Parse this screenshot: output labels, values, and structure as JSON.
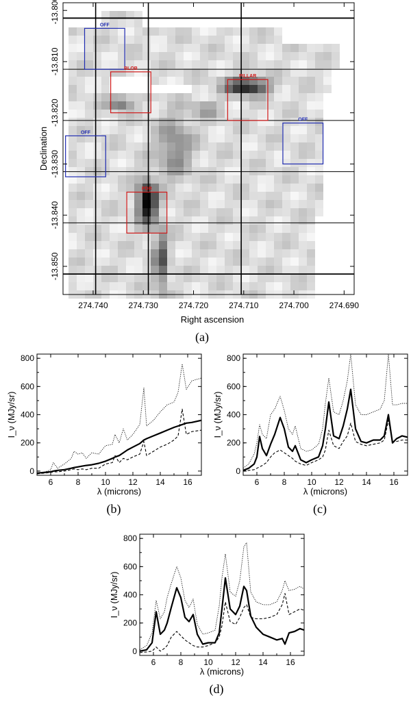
{
  "chart_data": [
    {
      "type": "heatmap",
      "panel": "(a)",
      "xlabel": "Right ascension",
      "ylabel": "Declination",
      "xlim": [
        274.746,
        274.688
      ],
      "ylim": [
        -13.8555,
        -13.7985
      ],
      "xticks": [
        "274.740",
        "274.730",
        "274.720",
        "274.710",
        "274.700",
        "274.690"
      ],
      "xtick_values": [
        274.74,
        274.73,
        274.72,
        274.71,
        274.7,
        274.69
      ],
      "yticks": [
        "-13.800",
        "-13.810",
        "-13.820",
        "-13.830",
        "-13.840",
        "-13.850"
      ],
      "ytick_values": [
        -13.8,
        -13.81,
        -13.82,
        -13.83,
        -13.84,
        -13.85
      ],
      "grid_ra": [
        274.7395,
        274.729,
        274.7105
      ],
      "grid_dec": [
        -13.8015,
        -13.8115,
        -13.8215,
        -13.8315,
        -13.8415,
        -13.8515
      ],
      "regions": [
        {
          "name": "OFF",
          "color": "#1f2bb0",
          "ra": [
            274.7417,
            274.7337
          ],
          "dec": [
            -13.8035,
            -13.8115
          ]
        },
        {
          "name": "BLOB",
          "color": "#d01818",
          "ra": [
            274.7365,
            274.7285
          ],
          "dec": [
            -13.812,
            -13.82
          ]
        },
        {
          "name": "PILLAR",
          "color": "#d01818",
          "ra": [
            274.7132,
            274.7052
          ],
          "dec": [
            -13.8135,
            -13.8215
          ]
        },
        {
          "name": "OFF",
          "color": "#1f2bb0",
          "ra": [
            274.7455,
            274.7375
          ],
          "dec": [
            -13.8245,
            -13.8325
          ]
        },
        {
          "name": "OFF",
          "color": "#1f2bb0",
          "ra": [
            274.7022,
            274.6942
          ],
          "dec": [
            -13.822,
            -13.83
          ]
        },
        {
          "name": "PDR",
          "color": "#d01818",
          "ra": [
            274.7333,
            274.7253
          ],
          "dec": [
            -13.8355,
            -13.8435
          ]
        }
      ],
      "caption": "(a)"
    },
    {
      "type": "line",
      "panel": "(b)",
      "xlabel": "λ (microns)",
      "ylabel": "I_ν (MJy/sr)",
      "xlim": [
        5,
        17
      ],
      "ylim": [
        -30,
        830
      ],
      "xticks": [
        6,
        8,
        10,
        12,
        14,
        16
      ],
      "yticks": [
        0,
        200,
        400,
        600,
        800
      ],
      "x": [
        5,
        5.5,
        6,
        6.2,
        6.5,
        7,
        7.5,
        7.7,
        8,
        8.3,
        8.6,
        9,
        9.5,
        10,
        10.5,
        10.7,
        11,
        11.3,
        11.6,
        12,
        12.5,
        12.8,
        13,
        13.5,
        14,
        14.5,
        15,
        15.3,
        15.6,
        15.9,
        16.3,
        17
      ],
      "series": [
        {
          "name": "solid",
          "style": "solid",
          "values": [
            -15,
            -10,
            -5,
            0,
            5,
            10,
            20,
            25,
            30,
            35,
            40,
            45,
            55,
            70,
            90,
            100,
            110,
            130,
            150,
            170,
            195,
            220,
            230,
            250,
            270,
            290,
            310,
            320,
            330,
            340,
            345,
            360
          ]
        },
        {
          "name": "dotted",
          "style": "dotted",
          "values": [
            -15,
            -10,
            10,
            60,
            20,
            50,
            90,
            140,
            120,
            130,
            90,
            130,
            120,
            180,
            190,
            260,
            200,
            300,
            220,
            260,
            330,
            590,
            320,
            360,
            420,
            470,
            490,
            560,
            760,
            580,
            640,
            660
          ]
        },
        {
          "name": "dashed",
          "style": "dashed",
          "values": [
            -20,
            -15,
            -10,
            -5,
            -5,
            0,
            10,
            15,
            10,
            15,
            10,
            20,
            20,
            50,
            60,
            110,
            60,
            90,
            80,
            100,
            120,
            210,
            110,
            140,
            170,
            190,
            220,
            250,
            440,
            260,
            280,
            290
          ]
        }
      ],
      "caption": "(b)"
    },
    {
      "type": "line",
      "panel": "(c)",
      "xlabel": "λ (microns)",
      "ylabel": "I_ν (MJy/sr)",
      "xlim": [
        5,
        17
      ],
      "ylim": [
        -30,
        830
      ],
      "xticks": [
        6,
        8,
        10,
        12,
        14,
        16
      ],
      "yticks": [
        0,
        200,
        400,
        600,
        800
      ],
      "x": [
        5,
        5.4,
        5.8,
        6.0,
        6.2,
        6.4,
        6.7,
        7.0,
        7.3,
        7.7,
        8.0,
        8.3,
        8.6,
        8.8,
        9.2,
        9.6,
        10.0,
        10.5,
        10.8,
        11.0,
        11.25,
        11.6,
        12.0,
        12.3,
        12.6,
        12.85,
        13.2,
        13.6,
        14.0,
        14.5,
        15.0,
        15.3,
        15.6,
        15.9,
        16.2,
        16.6,
        17
      ],
      "series": [
        {
          "name": "solid",
          "style": "solid",
          "values": [
            5,
            20,
            50,
            100,
            245,
            160,
            110,
            190,
            260,
            380,
            300,
            170,
            140,
            180,
            80,
            60,
            80,
            100,
            180,
            300,
            490,
            250,
            230,
            320,
            440,
            580,
            300,
            210,
            200,
            220,
            220,
            250,
            400,
            200,
            230,
            250,
            240
          ]
        },
        {
          "name": "dotted",
          "style": "dotted",
          "values": [
            20,
            50,
            120,
            200,
            330,
            260,
            230,
            400,
            440,
            530,
            430,
            300,
            260,
            320,
            160,
            140,
            150,
            190,
            300,
            480,
            660,
            420,
            400,
            500,
            640,
            850,
            470,
            400,
            400,
            420,
            440,
            500,
            830,
            470,
            470,
            480,
            480
          ]
        },
        {
          "name": "dashed",
          "style": "dashed",
          "values": [
            0,
            5,
            10,
            20,
            30,
            40,
            60,
            100,
            130,
            150,
            130,
            110,
            90,
            70,
            50,
            40,
            60,
            80,
            100,
            150,
            290,
            180,
            160,
            210,
            250,
            340,
            210,
            190,
            180,
            190,
            200,
            220,
            360,
            210,
            210,
            220,
            220
          ]
        }
      ],
      "caption": "(c)"
    },
    {
      "type": "line",
      "panel": "(d)",
      "xlabel": "λ (microns)",
      "ylabel": "I_ν (MJy/sr)",
      "xlim": [
        5,
        17
      ],
      "ylim": [
        -30,
        830
      ],
      "xticks": [
        6,
        8,
        10,
        12,
        14,
        16
      ],
      "yticks": [
        0,
        200,
        400,
        600,
        800
      ],
      "x": [
        5,
        5.5,
        5.9,
        6.2,
        6.5,
        6.8,
        7.0,
        7.3,
        7.7,
        8.0,
        8.3,
        8.6,
        8.9,
        9.2,
        9.6,
        10.0,
        10.5,
        10.8,
        11.0,
        11.25,
        11.6,
        12.0,
        12.3,
        12.6,
        12.8,
        13.1,
        13.5,
        14.0,
        14.5,
        15.0,
        15.4,
        15.6,
        15.9,
        16.3,
        16.7,
        17
      ],
      "series": [
        {
          "name": "solid",
          "style": "solid",
          "values": [
            0,
            10,
            60,
            280,
            120,
            150,
            200,
            310,
            450,
            380,
            240,
            210,
            260,
            120,
            50,
            60,
            60,
            130,
            300,
            520,
            300,
            260,
            320,
            460,
            430,
            250,
            170,
            120,
            100,
            80,
            90,
            50,
            130,
            140,
            160,
            150
          ]
        },
        {
          "name": "dotted",
          "style": "dotted",
          "values": [
            10,
            40,
            130,
            360,
            230,
            280,
            380,
            480,
            600,
            520,
            360,
            310,
            370,
            190,
            120,
            130,
            150,
            320,
            520,
            690,
            420,
            390,
            500,
            740,
            770,
            420,
            350,
            330,
            330,
            350,
            430,
            500,
            430,
            440,
            460,
            440
          ]
        },
        {
          "name": "dashed",
          "style": "dashed",
          "values": [
            -10,
            -5,
            0,
            30,
            0,
            20,
            40,
            100,
            140,
            110,
            80,
            60,
            40,
            30,
            30,
            40,
            60,
            100,
            180,
            350,
            210,
            190,
            240,
            310,
            330,
            240,
            230,
            230,
            240,
            260,
            330,
            410,
            260,
            280,
            300,
            290
          ]
        }
      ],
      "caption": "(d)"
    }
  ]
}
